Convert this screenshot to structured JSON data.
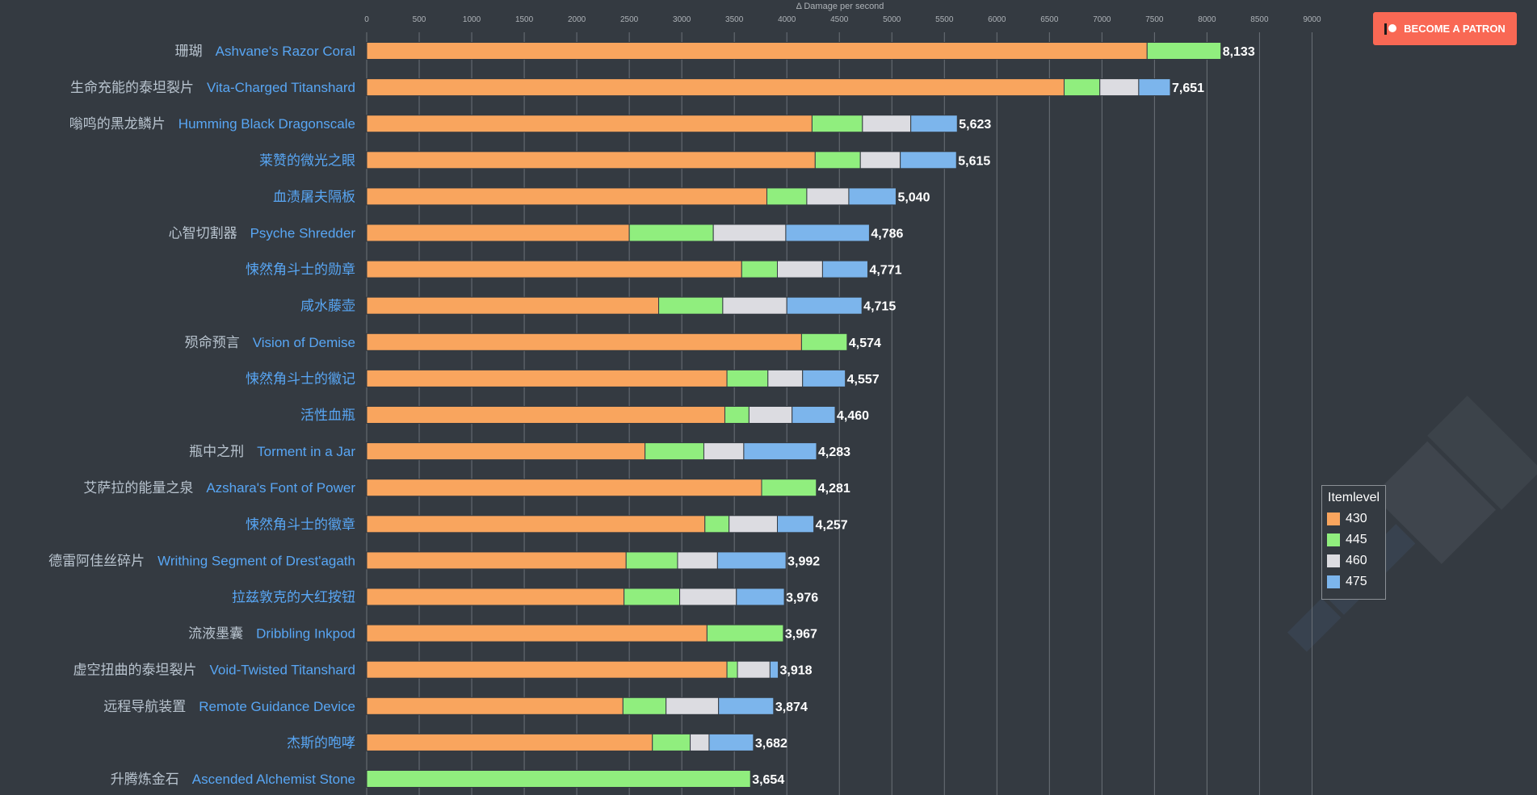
{
  "patron_button": {
    "label": "BECOME A PATRON",
    "color": "#f96854"
  },
  "chart_data": {
    "type": "bar",
    "orientation": "horizontal",
    "stacked": true,
    "title": "",
    "xlabel": "Δ Damage per second",
    "ylabel": "",
    "xlim": [
      0,
      9000
    ],
    "xticks": [
      0,
      500,
      1000,
      1500,
      2000,
      2500,
      3000,
      3500,
      4000,
      4500,
      5000,
      5500,
      6000,
      6500,
      7000,
      7500,
      8000,
      8500,
      9000
    ],
    "grid": true,
    "legend_title": "Itemlevel",
    "legend_position": "right",
    "series": [
      {
        "name": "430",
        "color": "#f9a55e"
      },
      {
        "name": "445",
        "color": "#90ee7e"
      },
      {
        "name": "460",
        "color": "#dcdce1"
      },
      {
        "name": "475",
        "color": "#7cb5ec"
      }
    ],
    "items": [
      {
        "cn": "珊瑚",
        "en": "Ashvane's Razor Coral",
        "segments": [
          7430,
          703,
          0,
          0
        ],
        "total": "8,133"
      },
      {
        "cn": "生命充能的泰坦裂片",
        "en": "Vita-Charged Titanshard",
        "segments": [
          6640,
          340,
          370,
          301
        ],
        "total": "7,651"
      },
      {
        "cn": "嗡鸣的黑龙鳞片",
        "en": "Humming Black Dragonscale",
        "segments": [
          4240,
          480,
          460,
          443
        ],
        "total": "5,623"
      },
      {
        "cn": "莱赞的微光之眼",
        "en": "",
        "segments": [
          4270,
          430,
          380,
          535
        ],
        "total": "5,615"
      },
      {
        "cn": "血渍屠夫隔板",
        "en": "",
        "segments": [
          3810,
          380,
          400,
          450
        ],
        "total": "5,040"
      },
      {
        "cn": "心智切割器",
        "en": "Psyche Shredder",
        "segments": [
          2500,
          800,
          690,
          796
        ],
        "total": "4,786"
      },
      {
        "cn": "悚然角斗士的勋章",
        "en": "",
        "segments": [
          3570,
          340,
          430,
          431
        ],
        "total": "4,771"
      },
      {
        "cn": "咸水藤壶",
        "en": "",
        "segments": [
          2780,
          610,
          610,
          715
        ],
        "total": "4,715"
      },
      {
        "cn": "殒命预言",
        "en": "Vision of Demise",
        "segments": [
          4140,
          434,
          0,
          0
        ],
        "total": "4,574"
      },
      {
        "cn": "悚然角斗士的徽记",
        "en": "",
        "segments": [
          3430,
          390,
          330,
          407
        ],
        "total": "4,557"
      },
      {
        "cn": "活性血瓶",
        "en": "",
        "segments": [
          3410,
          230,
          410,
          410
        ],
        "total": "4,460"
      },
      {
        "cn": "瓶中之刑",
        "en": "Torment in a Jar",
        "segments": [
          2650,
          560,
          380,
          693
        ],
        "total": "4,283"
      },
      {
        "cn": "艾萨拉的能量之泉",
        "en": "Azshara's Font of Power",
        "segments": [
          3760,
          521,
          0,
          0
        ],
        "total": "4,281"
      },
      {
        "cn": "悚然角斗士的徽章",
        "en": "",
        "segments": [
          3220,
          230,
          460,
          347
        ],
        "total": "4,257"
      },
      {
        "cn": "德雷阿佳丝碎片",
        "en": "Writhing Segment of Drest'agath",
        "segments": [
          2470,
          490,
          380,
          652
        ],
        "total": "3,992"
      },
      {
        "cn": "拉兹敦克的大红按钮",
        "en": "",
        "segments": [
          2450,
          530,
          540,
          456
        ],
        "total": "3,976"
      },
      {
        "cn": "流液墨囊",
        "en": "Dribbling Inkpod",
        "segments": [
          3240,
          727,
          0,
          0
        ],
        "total": "3,967"
      },
      {
        "cn": "虚空扭曲的泰坦裂片",
        "en": "Void-Twisted Titanshard",
        "segments": [
          3430,
          100,
          310,
          78
        ],
        "total": "3,918"
      },
      {
        "cn": "远程导航装置",
        "en": "Remote Guidance Device",
        "segments": [
          2440,
          410,
          500,
          524
        ],
        "total": "3,874"
      },
      {
        "cn": "杰斯的咆哮",
        "en": "",
        "segments": [
          2720,
          360,
          180,
          422
        ],
        "total": "3,682"
      },
      {
        "cn": "升腾炼金石",
        "en": "Ascended Alchemist Stone",
        "segments": [
          0,
          3654,
          0,
          0
        ],
        "total": "3,654"
      }
    ]
  }
}
